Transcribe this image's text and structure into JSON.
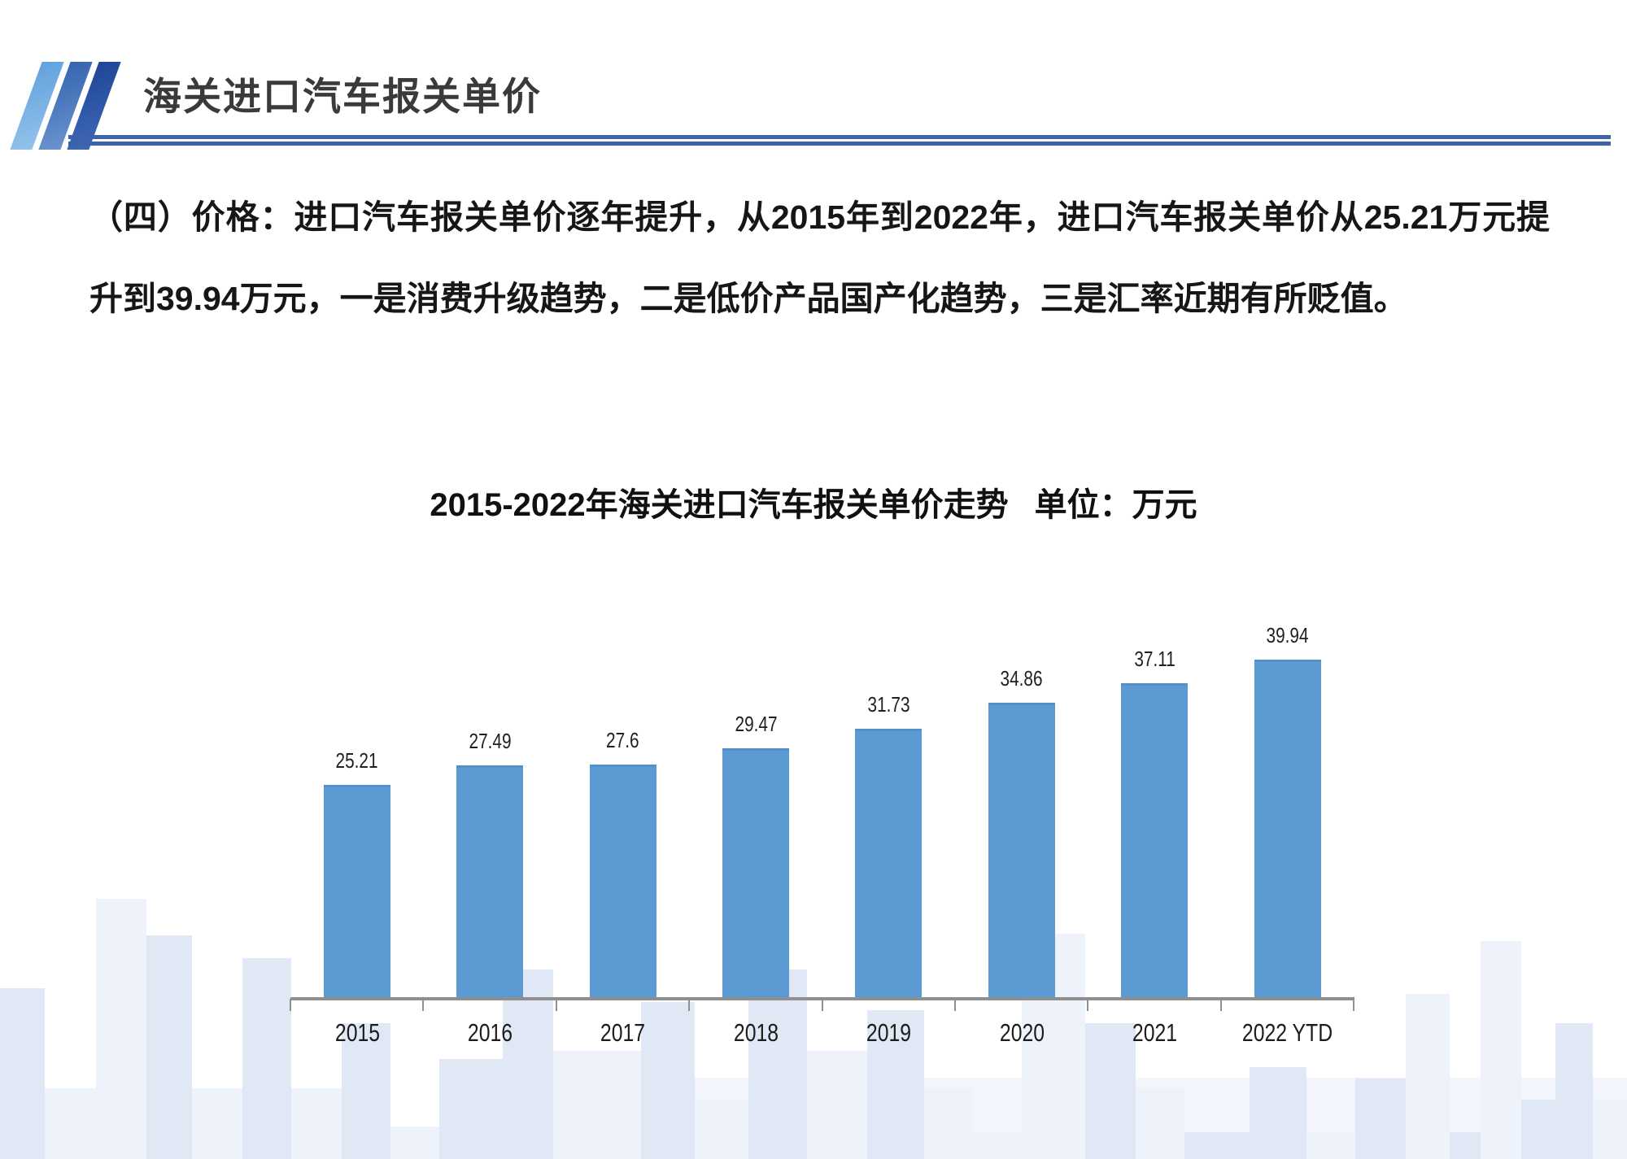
{
  "header": {
    "title": "海关进口汽车报关单价"
  },
  "paragraph": {
    "line1": "（四）价格：进口汽车报关单价逐年提升，从2015年到2022年，进口汽车报关单价从25.21万元提",
    "line2": "升到39.94万元，一是消费升级趋势，二是低价产品国产化趋势，三是汇率近期有所贬值。"
  },
  "chart_data": {
    "type": "bar",
    "title": "2015-2022年海关进口汽车报关单价走势",
    "unit_label": "单位：万元",
    "categories": [
      "2015",
      "2016",
      "2017",
      "2018",
      "2019",
      "2020",
      "2021",
      "2022 YTD"
    ],
    "values": [
      25.21,
      27.49,
      27.6,
      29.47,
      31.73,
      34.86,
      37.11,
      39.94
    ],
    "ylabel": "万元",
    "xlabel": "",
    "ylim": [
      0,
      46
    ],
    "grid": false,
    "legend": false,
    "data_labels": true,
    "bar_color": "#5C9AD3",
    "axis_color": "#8f8f8f",
    "accent_line_color": "#3E62A9"
  }
}
